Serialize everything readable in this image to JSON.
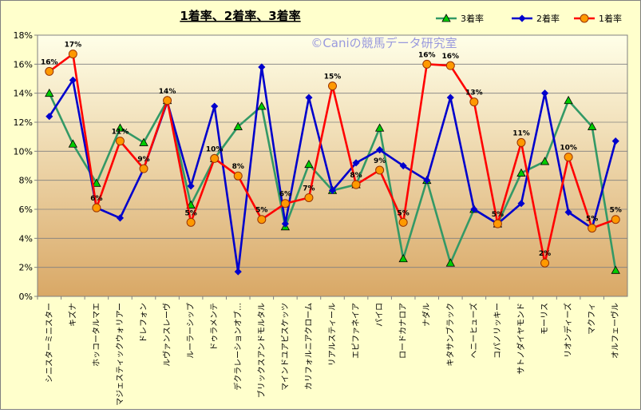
{
  "chart_data": {
    "type": "line",
    "title": "1着率、2着率、3着率",
    "watermark": "©Caniの競馬データ研究室",
    "ylim": [
      0,
      18
    ],
    "y_ticks": [
      "0%",
      "2%",
      "4%",
      "6%",
      "8%",
      "10%",
      "12%",
      "14%",
      "16%",
      "18%"
    ],
    "y_unit": "%",
    "grid": "horizontal",
    "legend_position": "top-right",
    "categories": [
      "シニスターミニスター",
      "キズナ",
      "ホッコータルマエ",
      "マジェスティックウォリアー",
      "ドレフォン",
      "ルヴァンスレーヴ",
      "ルーラーシップ",
      "ドゥラメンテ",
      "デクラレーションオブ…",
      "ブリックスアンドモルタル",
      "マインドユアビスケッツ",
      "カリフォルニアクローム",
      "リアルスティール",
      "エピファネイア",
      "パイロ",
      "ロードカナロア",
      "ナダル",
      "キタサンブラック",
      "ヘニーヒューズ",
      "コパノリッキー",
      "サトノダイヤモンド",
      "モーリス",
      "リオンディーズ",
      "マクフィ",
      "オルフェーヴル"
    ],
    "series": [
      {
        "name": "3着率",
        "color": "#339966",
        "marker": "triangle",
        "marker_fill": "#00cc00",
        "values": [
          14.0,
          10.5,
          7.8,
          11.6,
          10.6,
          13.5,
          6.3,
          9.5,
          11.7,
          13.1,
          4.8,
          9.1,
          7.3,
          7.7,
          11.6,
          2.6,
          8.0,
          2.3,
          6.0,
          5.0,
          8.5,
          9.3,
          13.5,
          11.7,
          1.8
        ]
      },
      {
        "name": "2着率",
        "color": "#0000cc",
        "marker": "diamond",
        "marker_fill": "#0000cc",
        "values": [
          12.4,
          14.9,
          6.1,
          5.4,
          8.8,
          13.4,
          7.6,
          13.1,
          1.7,
          15.8,
          5.0,
          13.7,
          7.3,
          9.2,
          10.1,
          9.0,
          8.0,
          13.7,
          6.0,
          5.0,
          6.4,
          14.0,
          5.8,
          4.7,
          10.7
        ]
      },
      {
        "name": "1着率",
        "color": "#ff0000",
        "marker": "circle",
        "marker_fill": "#ff9900",
        "values": [
          15.5,
          16.7,
          6.1,
          10.7,
          8.8,
          13.5,
          5.1,
          9.5,
          8.3,
          5.3,
          6.4,
          6.8,
          14.5,
          7.7,
          8.7,
          5.1,
          16.0,
          15.9,
          13.4,
          5.0,
          10.6,
          2.3,
          9.6,
          4.7,
          5.3
        ],
        "data_labels": [
          "16%",
          "17%",
          "6%",
          "11%",
          "9%",
          "14%",
          "5%",
          "10%",
          "8%",
          "5%",
          "6%",
          "7%",
          "15%",
          "8%",
          "9%",
          "5%",
          "16%",
          "16%",
          "13%",
          "5%",
          "11%",
          "2%",
          "10%",
          "5%",
          "5%"
        ]
      }
    ]
  }
}
